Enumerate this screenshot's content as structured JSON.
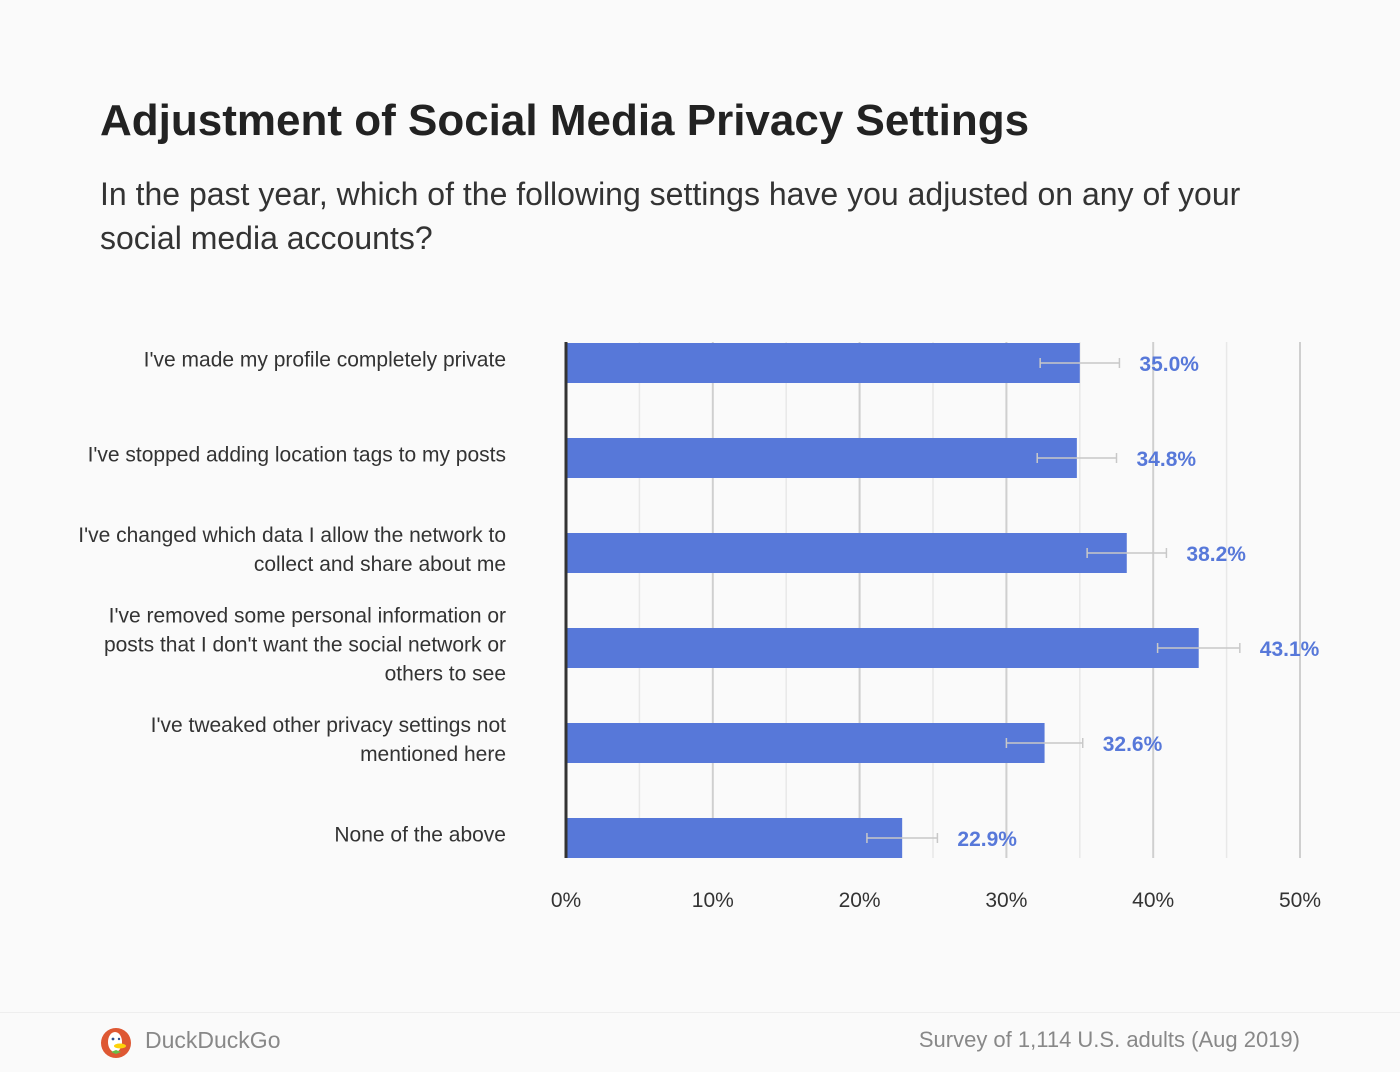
{
  "chart_data": {
    "type": "bar",
    "orientation": "horizontal",
    "title": "Adjustment of Social Media Privacy Settings",
    "subtitle": "In the past year, which of the following settings have you adjusted on any of your social media accounts?",
    "categories": [
      "I've made my profile completely private",
      "I've stopped adding location tags to my posts",
      "I've changed which data I allow the network to collect and share about me",
      "I've removed some personal information or posts that I don't want the social network or others to see",
      "I've tweaked other privacy settings not mentioned here",
      "None of the above"
    ],
    "values": [
      35.0,
      34.8,
      38.2,
      43.1,
      32.6,
      22.9
    ],
    "value_labels": [
      "35.0%",
      "34.8%",
      "38.2%",
      "43.1%",
      "32.6%",
      "22.9%"
    ],
    "error_margins": [
      2.7,
      2.7,
      2.7,
      2.8,
      2.6,
      2.4
    ],
    "xlim": [
      0,
      50
    ],
    "x_ticks": [
      "0%",
      "10%",
      "20%",
      "30%",
      "40%",
      "50%"
    ],
    "grid": true,
    "bar_color": "#5778d9",
    "label_color": "#5778d9"
  },
  "footer": {
    "brand": "DuckDuckGo",
    "source": "Survey of 1,114 U.S. adults (Aug 2019)"
  }
}
